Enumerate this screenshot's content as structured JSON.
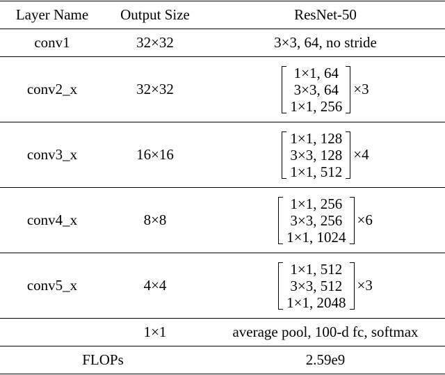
{
  "table": {
    "header": [
      "Layer Name",
      "Output Size",
      "ResNet-50"
    ],
    "rows": [
      {
        "layer": "conv1",
        "output": "32×32",
        "config": "3×3, 64, no stride"
      },
      {
        "layer": "conv2_x",
        "output": "32×32",
        "block": [
          "1×1, 64",
          "3×3, 64",
          "1×1, 256"
        ],
        "repeat": "×3"
      },
      {
        "layer": "conv3_x",
        "output": "16×16",
        "block": [
          "1×1, 128",
          "3×3, 128",
          "1×1, 512"
        ],
        "repeat": "×4"
      },
      {
        "layer": "conv4_x",
        "output": "8×8",
        "block": [
          "1×1, 256",
          "3×3, 256",
          "1×1, 1024"
        ],
        "repeat": "×6"
      },
      {
        "layer": "conv5_x",
        "output": "4×4",
        "block": [
          "1×1, 512",
          "3×3, 512",
          "1×1, 2048"
        ],
        "repeat": "×3"
      },
      {
        "output": "1×1",
        "config": "average pool, 100-d fc, softmax"
      }
    ],
    "footer": {
      "label": "FLOPs",
      "value": "2.59e9"
    }
  }
}
